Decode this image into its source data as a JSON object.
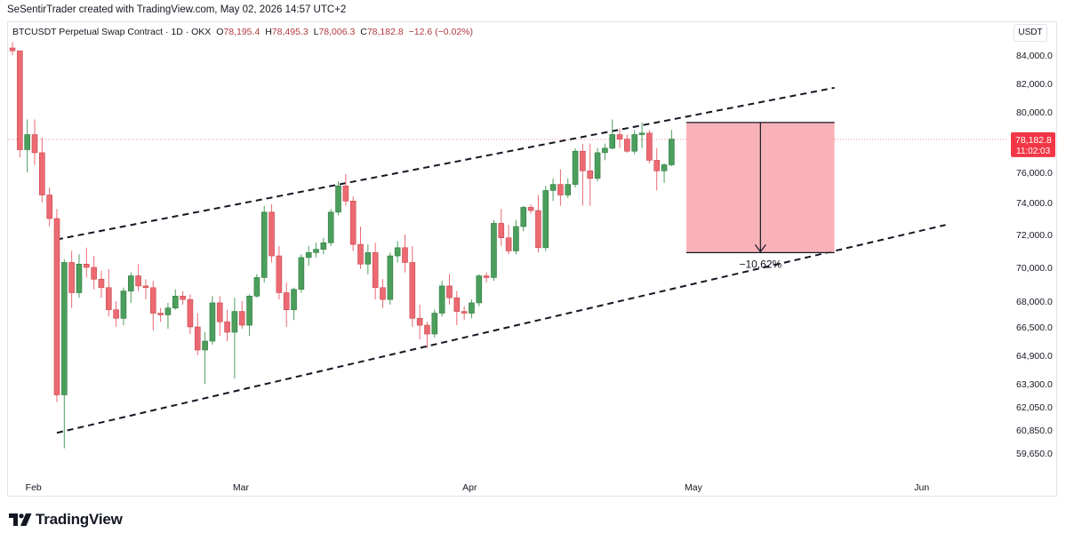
{
  "header": {
    "attribution": "SeSentirTrader created with TradingView.com, May 02, 2026 14:57 UTC+2"
  },
  "legend": {
    "symbol": "BTCUSDT Perpetual Swap Contract · 1D · OKX",
    "open_label": "O",
    "open": "78,195.4",
    "high_label": "H",
    "high": "78,495.3",
    "low_label": "L",
    "low": "78,006.3",
    "close_label": "C",
    "close": "78,182.8",
    "change": "−12.6 (−0.02%)"
  },
  "currency": "USDT",
  "price_badge": {
    "price": "78,182.8",
    "countdown": "11:02:03",
    "color": "#f23645"
  },
  "measure": {
    "label": "−10.62%"
  },
  "footer": {
    "brand": "TradingView"
  },
  "colors": {
    "up": "#4c9e5c",
    "down": "#ec6a72",
    "measure_fill": "#f9a5ad"
  },
  "chart_data": {
    "type": "candlestick",
    "y_ticks": [
      84000,
      82000,
      80000,
      76000,
      74000,
      72000,
      70000,
      68000,
      66500,
      64900,
      63300,
      62050,
      60850,
      59650
    ],
    "y_tick_labels": [
      "84,000.0",
      "82,000.0",
      "80,000.0",
      "76,000.0",
      "74,000.0",
      "72,000.0",
      "70,000.0",
      "68,000.0",
      "66,500.0",
      "64,900.0",
      "63,300.0",
      "62,050.0",
      "60,850.0",
      "59,650.0"
    ],
    "x_labels": [
      {
        "label": "Feb",
        "date": "2026-02-01"
      },
      {
        "label": "Mar",
        "date": "2026-03-01"
      },
      {
        "label": "Apr",
        "date": "2026-04-01"
      },
      {
        "label": "May",
        "date": "2026-05-01"
      },
      {
        "label": "Jun",
        "date": "2026-06-01"
      }
    ],
    "start_date": "2026-01-30",
    "candles": [
      [
        84500,
        84900,
        84000,
        84300
      ],
      [
        84300,
        84300,
        77000,
        77500
      ],
      [
        77500,
        79500,
        76000,
        78500
      ],
      [
        78500,
        79500,
        76500,
        77300
      ],
      [
        77300,
        78300,
        74000,
        74500
      ],
      [
        74500,
        75000,
        72500,
        73000
      ],
      [
        73000,
        73600,
        62300,
        62700
      ],
      [
        62700,
        70500,
        59900,
        70300
      ],
      [
        70300,
        71000,
        67600,
        68500
      ],
      [
        68500,
        70800,
        68200,
        70200
      ],
      [
        70200,
        71200,
        69400,
        70000
      ],
      [
        70000,
        70700,
        68700,
        69300
      ],
      [
        69300,
        69800,
        68200,
        68800
      ],
      [
        68800,
        69900,
        67100,
        67500
      ],
      [
        67500,
        68000,
        66500,
        67000
      ],
      [
        67000,
        68800,
        66600,
        68600
      ],
      [
        68600,
        69700,
        67900,
        69500
      ],
      [
        69500,
        70200,
        68600,
        68900
      ],
      [
        68900,
        69300,
        68100,
        68800
      ],
      [
        68800,
        69200,
        66300,
        67300
      ],
      [
        67300,
        67600,
        66800,
        67200
      ],
      [
        67200,
        67900,
        66400,
        67600
      ],
      [
        67600,
        68700,
        67500,
        68300
      ],
      [
        68300,
        68600,
        67800,
        68100
      ],
      [
        68100,
        68400,
        66100,
        66500
      ],
      [
        66500,
        67300,
        64900,
        65200
      ],
      [
        65200,
        66200,
        63300,
        65700
      ],
      [
        65700,
        68300,
        65500,
        67900
      ],
      [
        67900,
        68300,
        66000,
        66800
      ],
      [
        66800,
        67500,
        65700,
        66200
      ],
      [
        66200,
        68200,
        63600,
        67400
      ],
      [
        67400,
        68000,
        66400,
        66600
      ],
      [
        66600,
        68400,
        66000,
        68300
      ],
      [
        68300,
        69600,
        68200,
        69400
      ],
      [
        69400,
        73800,
        69100,
        73400
      ],
      [
        73400,
        73900,
        70300,
        70700
      ],
      [
        70700,
        71300,
        68100,
        68500
      ],
      [
        68500,
        69100,
        66500,
        67500
      ],
      [
        67500,
        68800,
        66900,
        68700
      ],
      [
        68700,
        70800,
        68500,
        70600
      ],
      [
        70600,
        71300,
        70100,
        70900
      ],
      [
        70900,
        71500,
        70600,
        71100
      ],
      [
        71100,
        71800,
        70800,
        71500
      ],
      [
        71500,
        73600,
        71300,
        73400
      ],
      [
        73400,
        75400,
        73200,
        75100
      ],
      [
        75100,
        75900,
        73800,
        74100
      ],
      [
        74100,
        74400,
        71000,
        71400
      ],
      [
        71400,
        72500,
        69900,
        70200
      ],
      [
        70200,
        71400,
        69600,
        70900
      ],
      [
        70900,
        71500,
        68100,
        68800
      ],
      [
        68800,
        69300,
        67600,
        68100
      ],
      [
        68100,
        70900,
        67800,
        70700
      ],
      [
        70700,
        71600,
        70300,
        71200
      ],
      [
        71200,
        72000,
        69700,
        70300
      ],
      [
        70300,
        71300,
        66500,
        67000
      ],
      [
        67000,
        67800,
        65800,
        66600
      ],
      [
        66600,
        66800,
        65300,
        66100
      ],
      [
        66100,
        67500,
        65900,
        67300
      ],
      [
        67300,
        69200,
        67100,
        68900
      ],
      [
        68900,
        69600,
        67800,
        68200
      ],
      [
        68200,
        68600,
        66600,
        67400
      ],
      [
        67400,
        67700,
        66900,
        67300
      ],
      [
        67300,
        68100,
        67000,
        67900
      ],
      [
        67900,
        69600,
        67700,
        69500
      ],
      [
        69500,
        69700,
        69100,
        69400
      ],
      [
        69400,
        72900,
        69200,
        72700
      ],
      [
        72700,
        73600,
        71300,
        71800
      ],
      [
        71800,
        72600,
        70800,
        71000
      ],
      [
        71000,
        72900,
        70800,
        72500
      ],
      [
        72500,
        73800,
        72200,
        73700
      ],
      [
        73700,
        73900,
        73300,
        73500
      ],
      [
        73500,
        74500,
        70900,
        71200
      ],
      [
        71200,
        75100,
        71000,
        74800
      ],
      [
        74800,
        75600,
        74100,
        75200
      ],
      [
        75200,
        76200,
        73800,
        74500
      ],
      [
        74500,
        75600,
        74300,
        75200
      ],
      [
        75200,
        77600,
        75000,
        77400
      ],
      [
        77400,
        77900,
        73800,
        76100
      ],
      [
        76100,
        77900,
        73800,
        75600
      ],
      [
        75600,
        77600,
        75400,
        77300
      ],
      [
        77300,
        77900,
        76800,
        77600
      ],
      [
        77600,
        79500,
        77500,
        78500
      ],
      [
        78500,
        78900,
        77600,
        78200
      ],
      [
        78200,
        78500,
        77300,
        77400
      ],
      [
        77400,
        78800,
        77200,
        78500
      ],
      [
        78500,
        79300,
        77600,
        78600
      ],
      [
        78600,
        78800,
        76600,
        76800
      ],
      [
        76800,
        77600,
        74800,
        76100
      ],
      [
        76100,
        76600,
        75300,
        76500
      ],
      [
        76500,
        78800,
        76400,
        78200
      ]
    ],
    "channel_upper": [
      [
        "2026-02-05",
        71700
      ],
      [
        "2026-05-21",
        81700
      ]
    ],
    "channel_lower": [
      [
        "2026-02-05",
        60700
      ],
      [
        "2026-06-05",
        72600
      ]
    ],
    "measure": {
      "from_date": "2026-05-01",
      "to_date": "2026-05-21",
      "top": 79300,
      "bottom": 70900
    },
    "last_price": 78182.8
  }
}
